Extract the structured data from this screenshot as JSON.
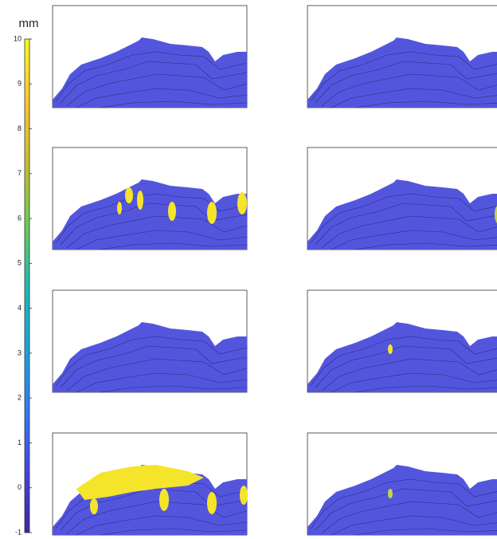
{
  "chart_data": {
    "type": "colorbar",
    "title": "mm",
    "ylim": [
      -1,
      10
    ],
    "yticks": [
      -1,
      0,
      1,
      2,
      3,
      4,
      5,
      6,
      7,
      8,
      9,
      10
    ],
    "colors": [
      "#3e26a8",
      "#4742e0",
      "#2f7cf6",
      "#1aa3dc",
      "#1fbab0",
      "#6ccc5a",
      "#c6be2e",
      "#fbc43a",
      "#f9fb15"
    ]
  }
}
